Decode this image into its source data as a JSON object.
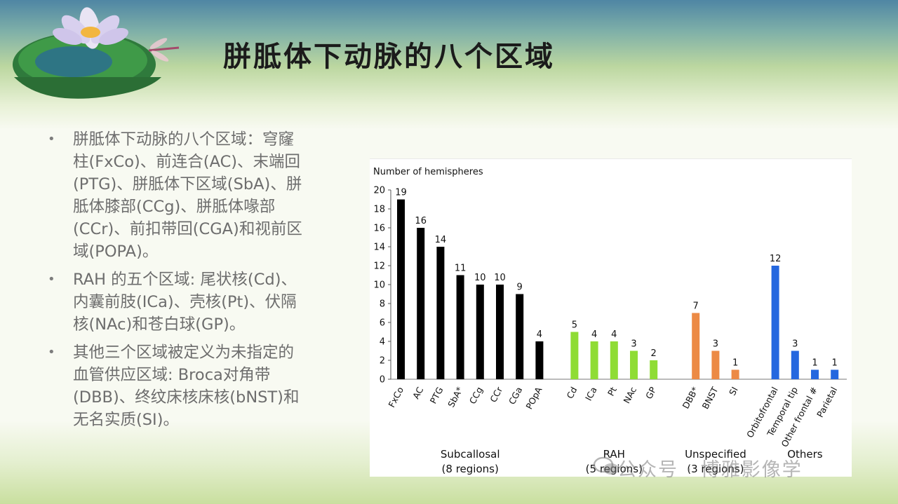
{
  "slide": {
    "title": "胼胝体下动脉的八个区域"
  },
  "bullets": [
    "胼胝体下动脉的八个区域：穹窿柱(FxCo)、前连合(AC)、末端回(PTG)、胼胝体下区域(SbA)、胼胝体膝部(CCg)、胼胝体喙部(CCr)、前扣带回(CGA)和视前区域(POPA)。",
    "RAH 的五个区域: 尾状核(Cd)、内囊前肢(ICa)、壳核(Pt)、伏隔核(NAc)和苍白球(GP)。",
    "其他三个区域被定义为未指定的血管供应区域: Broca对角带(DBB)、终纹床核床核(bNST)和无名实质(SI)。"
  ],
  "watermark": {
    "text": "公众号 · 博雅影像学",
    "icon": "wechat-icon"
  },
  "decor": {
    "icons": [
      "lotus-flower-icon",
      "lily-pad-icon",
      "dragonfly-icon"
    ]
  },
  "chart_data": {
    "type": "bar",
    "title": "",
    "ylabel": "Number of hemispheres",
    "xlabel": "",
    "ylim": [
      0,
      20
    ],
    "yticks": [
      0,
      2,
      4,
      6,
      8,
      10,
      12,
      14,
      16,
      18,
      20
    ],
    "grid": false,
    "groups": [
      {
        "name": "Subcallosal",
        "sub": "(8 regions)",
        "color": "#000000",
        "categories": [
          "FxCo",
          "AC",
          "PTG",
          "SbA*",
          "CCg",
          "CCr",
          "CGa",
          "POpA"
        ],
        "values": [
          19,
          16,
          14,
          11,
          10,
          10,
          9,
          4
        ]
      },
      {
        "name": "RAH",
        "sub": "(5 regions)",
        "color": "#8fdc35",
        "categories": [
          "Cd",
          "ICa",
          "Pt",
          "NAc",
          "GP"
        ],
        "values": [
          5,
          4,
          4,
          3,
          2
        ]
      },
      {
        "name": "Unspecified",
        "sub": "(3 regions)",
        "color": "#ec8a45",
        "categories": [
          "DBB*",
          "BNST",
          "SI"
        ],
        "values": [
          7,
          3,
          1
        ]
      },
      {
        "name": "Others",
        "sub": "",
        "color": "#2467df",
        "categories": [
          "Orbitofrontal",
          "Temporal tip",
          "Other frontal #",
          "Parietal"
        ],
        "values": [
          12,
          3,
          1,
          1
        ]
      }
    ]
  }
}
